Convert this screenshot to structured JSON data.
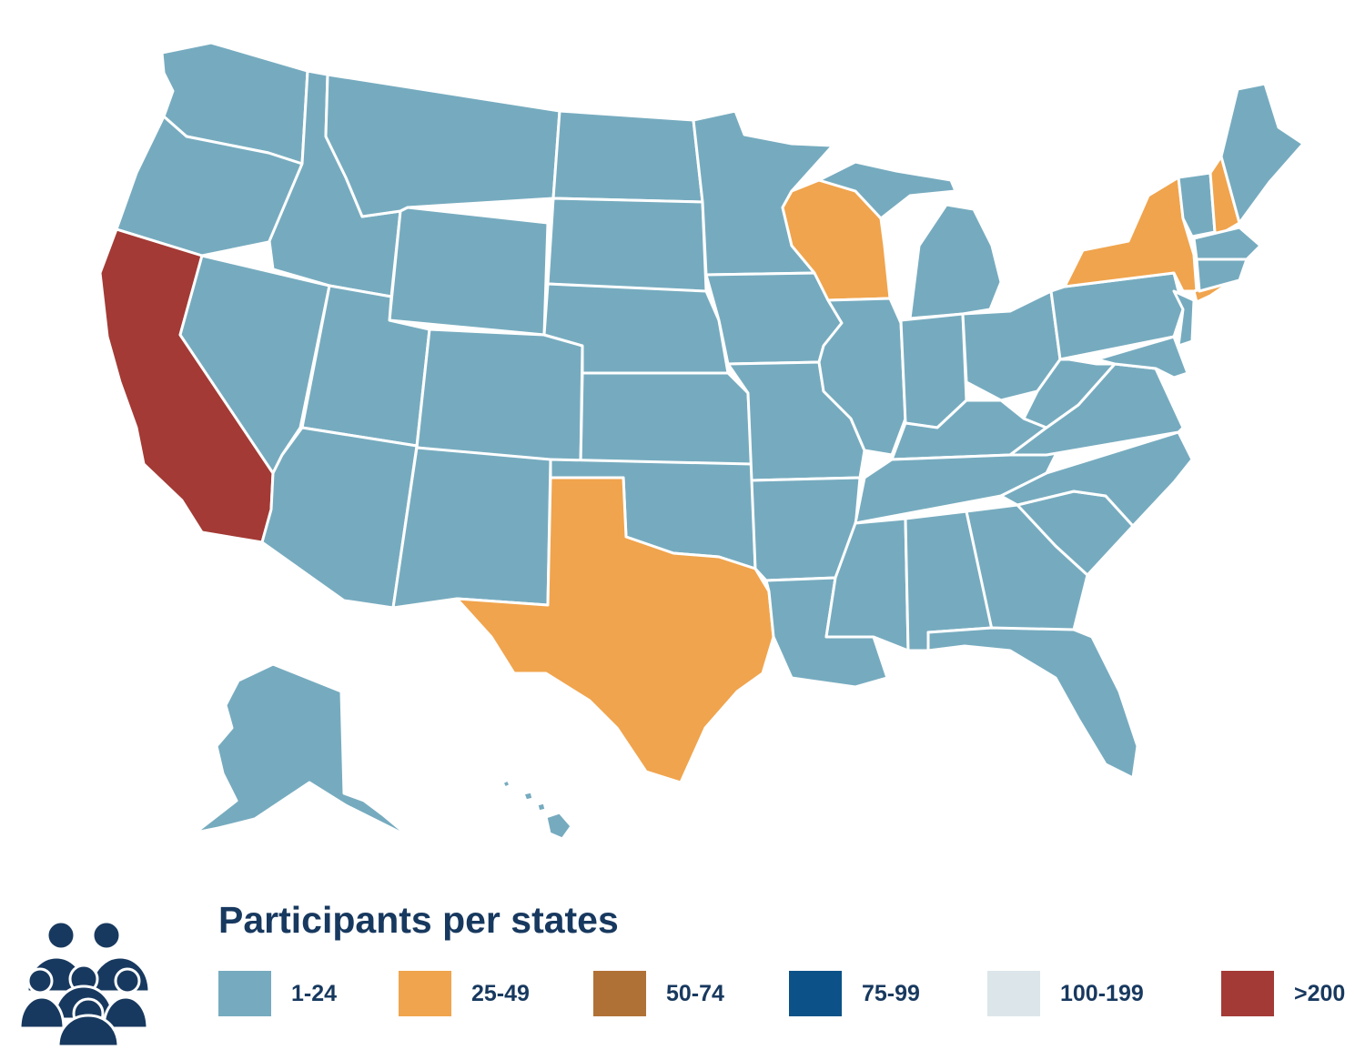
{
  "map": {
    "state_colors": {
      "default": "#76abbf",
      "california": "#a33a35",
      "texas": "#f0a44d",
      "wisconsin": "#f0a44d",
      "new-york": "#f0a44d",
      "new-hampshire": "#f0a44d",
      "border": "#ffffff"
    }
  },
  "legend": {
    "title": "Participants per states",
    "icon": "people-group-icon",
    "icon_color": "#18395f",
    "items": [
      {
        "label": "1-24",
        "color": "#76abbf"
      },
      {
        "label": "25-49",
        "color": "#f0a44d"
      },
      {
        "label": "50-74",
        "color": "#b07136"
      },
      {
        "label": "75-99",
        "color": "#0c5288"
      },
      {
        "label": "100-199",
        "color": "#dce6ea"
      },
      {
        "label": ">200",
        "color": "#a33a35"
      }
    ]
  }
}
